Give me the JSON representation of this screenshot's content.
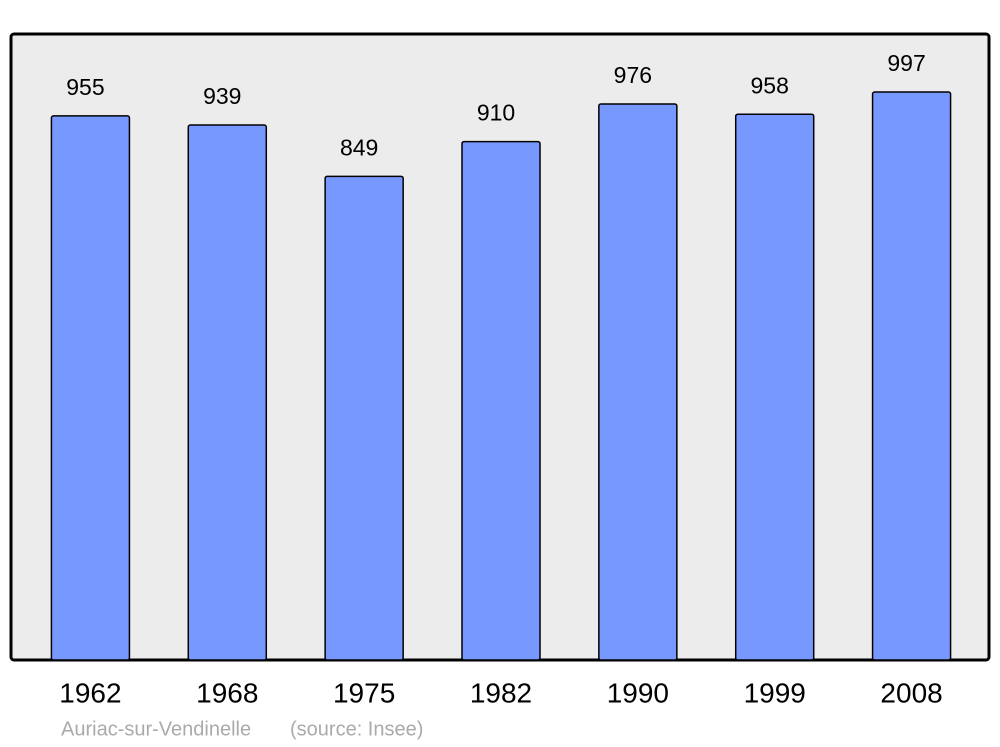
{
  "chart_data": {
    "type": "bar",
    "title": "Auriac-sur-Vendinelle",
    "source": "(source: Insee)",
    "categories": [
      "1962",
      "1968",
      "1975",
      "1982",
      "1990",
      "1999",
      "2008"
    ],
    "values": [
      955,
      939,
      849,
      910,
      976,
      958,
      997
    ],
    "color": "#7799ff"
  }
}
